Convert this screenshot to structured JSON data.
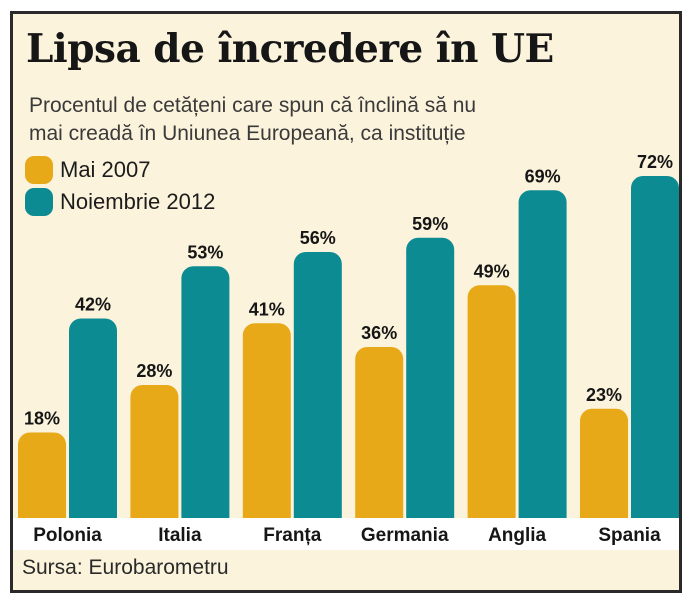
{
  "chart_data": {
    "type": "bar",
    "title": "Lipsa de încredere în UE",
    "subtitle_line1": "Procentul de cetățeni care spun că înclină să nu",
    "subtitle_line2": "mai creadă în Uniunea Europeană, ca instituție",
    "categories": [
      "Polonia",
      "Italia",
      "Franța",
      "Germania",
      "Anglia",
      "Spania"
    ],
    "series": [
      {
        "name": "Mai 2007",
        "color": "#e8a918",
        "values": [
          18,
          28,
          41,
          36,
          49,
          23
        ],
        "labels": [
          "18%",
          "28%",
          "41%",
          "36%",
          "49%",
          "23%"
        ]
      },
      {
        "name": "Noiembrie 2012",
        "color": "#0d8b93",
        "values": [
          42,
          53,
          56,
          59,
          69,
          72
        ],
        "labels": [
          "42%",
          "53%",
          "56%",
          "59%",
          "69%",
          "72%"
        ]
      }
    ],
    "ylim": [
      0,
      80
    ],
    "xlabel": "",
    "ylabel": "",
    "legend_position": "top-left",
    "source": "Sursa: Eurobarometru"
  }
}
